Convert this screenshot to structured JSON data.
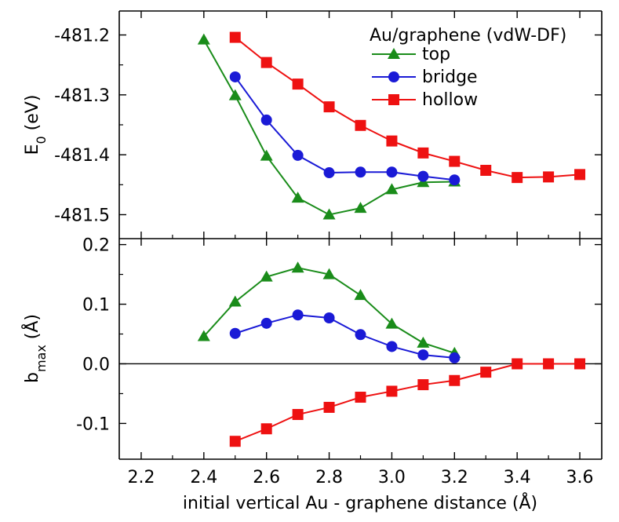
{
  "chart_data": [
    {
      "panel": "top",
      "type": "line",
      "ylabel_main": "E",
      "ylabel_sub": "0",
      "ylabel_unit": " (eV)",
      "ylim": [
        -481.54,
        -481.16
      ],
      "yticks": [
        -481.2,
        -481.3,
        -481.4,
        -481.5
      ],
      "ytick_labels": [
        "-481.2",
        "-481.3",
        "-481.4",
        "-481.5"
      ],
      "legend_title": "Au/graphene (vdW-DF)",
      "legend_position": "top-right",
      "series": [
        {
          "name": "top",
          "color": "#1a8c1a",
          "marker": "triangle",
          "x": [
            2.4,
            2.5,
            2.6,
            2.7,
            2.8,
            2.9,
            3.0,
            3.1,
            3.2
          ],
          "y": [
            -481.208,
            -481.301,
            -481.402,
            -481.472,
            -481.5,
            -481.489,
            -481.458,
            -481.446,
            -481.445
          ]
        },
        {
          "name": "bridge",
          "color": "#1a1ad6",
          "marker": "circle",
          "x": [
            2.5,
            2.6,
            2.7,
            2.8,
            2.9,
            3.0,
            3.1,
            3.2
          ],
          "y": [
            -481.27,
            -481.342,
            -481.401,
            -481.43,
            -481.429,
            -481.429,
            -481.436,
            -481.442
          ]
        },
        {
          "name": "hollow",
          "color": "#ee1111",
          "marker": "square",
          "x": [
            2.5,
            2.6,
            2.7,
            2.8,
            2.9,
            3.0,
            3.1,
            3.2,
            3.3,
            3.4,
            3.5,
            3.6
          ],
          "y": [
            -481.204,
            -481.246,
            -481.282,
            -481.32,
            -481.351,
            -481.377,
            -481.397,
            -481.411,
            -481.426,
            -481.438,
            -481.437,
            -481.433
          ]
        }
      ]
    },
    {
      "panel": "bottom",
      "type": "line",
      "ylabel_main": "b",
      "ylabel_sub": "max",
      "ylabel_unit": " (Å)",
      "ylim": [
        -0.16,
        0.21
      ],
      "yticks": [
        0.2,
        0.1,
        0.0,
        -0.1
      ],
      "ytick_labels": [
        "0.2",
        "0.1",
        "0.0",
        "-0.1"
      ],
      "zero_line": true,
      "series": [
        {
          "name": "top",
          "color": "#1a8c1a",
          "marker": "triangle",
          "x": [
            2.4,
            2.5,
            2.6,
            2.7,
            2.8,
            2.9,
            3.0,
            3.1,
            3.2
          ],
          "y": [
            0.046,
            0.104,
            0.146,
            0.161,
            0.15,
            0.115,
            0.067,
            0.035,
            0.018
          ]
        },
        {
          "name": "bridge",
          "color": "#1a1ad6",
          "marker": "circle",
          "x": [
            2.5,
            2.6,
            2.7,
            2.8,
            2.9,
            3.0,
            3.1,
            3.2
          ],
          "y": [
            0.051,
            0.068,
            0.082,
            0.077,
            0.049,
            0.029,
            0.015,
            0.01
          ]
        },
        {
          "name": "hollow",
          "color": "#ee1111",
          "marker": "square",
          "x": [
            2.5,
            2.6,
            2.7,
            2.8,
            2.9,
            3.0,
            3.1,
            3.2,
            3.3,
            3.4,
            3.5,
            3.6
          ],
          "y": [
            -0.13,
            -0.109,
            -0.085,
            -0.073,
            -0.056,
            -0.046,
            -0.035,
            -0.028,
            -0.014,
            0.0,
            0.0,
            0.0
          ]
        }
      ]
    }
  ],
  "x_axis": {
    "label": "initial vertical Au - graphene distance (Å)",
    "xlim": [
      2.13,
      3.67
    ],
    "ticks": [
      2.2,
      2.4,
      2.6,
      2.8,
      3.0,
      3.2,
      3.4,
      3.6
    ],
    "tick_labels": [
      "2.2",
      "2.4",
      "2.6",
      "2.8",
      "3.0",
      "3.2",
      "3.4",
      "3.6"
    ]
  }
}
